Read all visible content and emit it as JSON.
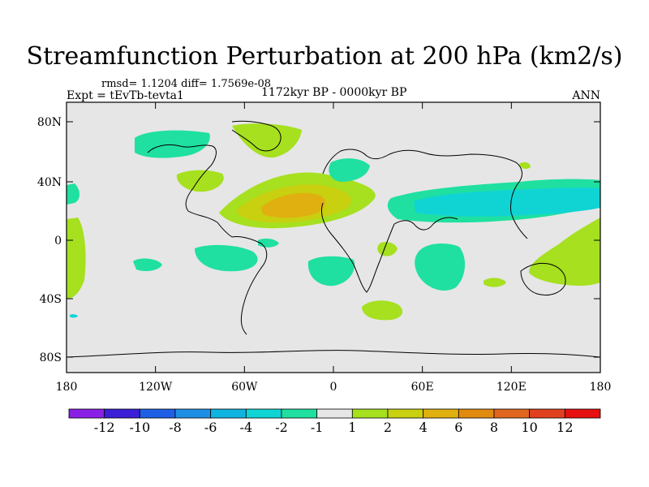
{
  "header": {
    "title": "Streamfunction Perturbation at 200 hPa (km2/s)",
    "stats": "rmsd= 1.1204 diff= 1.7569e-08",
    "experiment": "Expt = tEvTb-tevta1",
    "period": "1172kyr BP - 0000kyr BP",
    "season": "ANN"
  },
  "map": {
    "lat_labels": [
      "80N",
      "40N",
      "0",
      "40S",
      "80S"
    ],
    "lon_labels": [
      "180",
      "120W",
      "60W",
      "0",
      "60E",
      "120E",
      "180"
    ],
    "background_color": "#e6e6e6"
  },
  "legend": {
    "colors": [
      "#8a1fe6",
      "#3a1fd6",
      "#1f5fe6",
      "#1f8fe6",
      "#10b4e0",
      "#10d4d4",
      "#1fe0a0",
      "#e6e6e6",
      "#a6e01f",
      "#c8d010",
      "#e0b010",
      "#e08a10",
      "#e0661f",
      "#e0401f",
      "#e61010"
    ],
    "labels": [
      "-12",
      "-10",
      "-8",
      "-6",
      "-4",
      "-2",
      "-1",
      "1",
      "2",
      "4",
      "6",
      "8",
      "10",
      "12"
    ]
  }
}
